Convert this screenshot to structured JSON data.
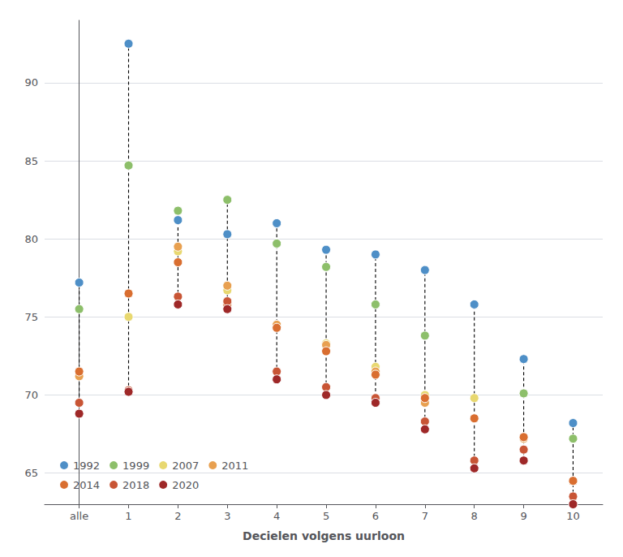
{
  "chart_data": {
    "type": "scatter",
    "xlabel": "Decielen volgens uurloon",
    "x": [
      0,
      1,
      2,
      3,
      4,
      5,
      6,
      7,
      8,
      9,
      10
    ],
    "series": [
      {
        "name": "1992",
        "color": "#4e8fc7",
        "values": [
          77.2,
          92.5,
          81.2,
          80.3,
          81.0,
          79.3,
          79.0,
          78.0,
          75.8,
          72.3,
          68.2
        ]
      },
      {
        "name": "1999",
        "color": "#8dbf6a",
        "values": [
          75.5,
          84.7,
          81.8,
          82.5,
          79.7,
          78.2,
          75.8,
          73.8,
          null,
          70.1,
          67.2
        ]
      },
      {
        "name": "2007",
        "color": "#e8d870",
        "values": [
          71.3,
          75.0,
          79.2,
          76.7,
          74.5,
          73.3,
          71.8,
          70.0,
          69.8,
          null,
          64.5
        ]
      },
      {
        "name": "2011",
        "color": "#e8a050",
        "values": [
          71.2,
          76.5,
          79.5,
          77.0,
          74.5,
          73.2,
          71.5,
          69.5,
          68.5,
          67.2,
          64.5
        ]
      },
      {
        "name": "2014",
        "color": "#d96e30",
        "values": [
          71.5,
          76.5,
          78.5,
          75.8,
          74.3,
          72.8,
          71.3,
          69.8,
          68.5,
          67.3,
          64.5
        ]
      },
      {
        "name": "2018",
        "color": "#c85535",
        "values": [
          69.5,
          70.3,
          76.3,
          76.0,
          71.5,
          70.5,
          69.8,
          68.3,
          65.8,
          66.5,
          63.5
        ]
      },
      {
        "name": "2020",
        "color": "#9e2828",
        "values": [
          68.8,
          70.2,
          75.8,
          75.5,
          71.0,
          70.0,
          69.5,
          67.8,
          65.3,
          65.8,
          63.0
        ]
      }
    ],
    "xlim": [
      -0.7,
      10.6
    ],
    "xticks": [
      {
        "value": 0,
        "label": "alle"
      },
      1,
      2,
      3,
      4,
      5,
      6,
      7,
      8,
      9,
      10
    ],
    "ylim": [
      63.0,
      94.0
    ],
    "yticks": [
      65,
      70,
      75,
      80,
      85,
      90
    ],
    "grid": true,
    "legend": "lower left"
  }
}
